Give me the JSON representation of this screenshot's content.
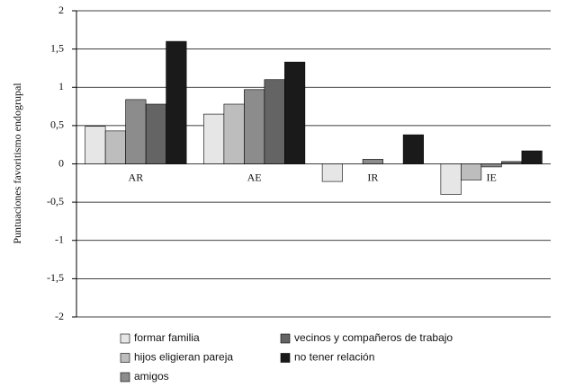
{
  "chart_data": {
    "type": "bar",
    "y_label": "Puntuaciones favoritismo endogrupal",
    "categories": [
      "AR",
      "AE",
      "IR",
      "IE"
    ],
    "series": [
      {
        "name": "formar familia",
        "color": "#e6e6e6",
        "values": [
          0.49,
          0.65,
          -0.23,
          -0.4
        ]
      },
      {
        "name": "hijos eligieran pareja",
        "color": "#bdbdbd",
        "values": [
          0.43,
          0.78,
          0,
          -0.21
        ]
      },
      {
        "name": "amigos",
        "color": "#8c8c8c",
        "values": [
          0.84,
          0.97,
          0.06,
          -0.04
        ]
      },
      {
        "name": "vecinos y compañeros de trabajo",
        "color": "#646464",
        "values": [
          0.78,
          1.1,
          0,
          0.03
        ]
      },
      {
        "name": "no tener relación",
        "color": "#1a1a1a",
        "values": [
          1.6,
          1.33,
          0.38,
          0.17
        ]
      }
    ],
    "ylim": [
      -2,
      2
    ],
    "yticks": [
      -2,
      {
        "value": -1.5,
        "label": "-1,5"
      },
      -1,
      {
        "value": -0.5,
        "label": "-0,5"
      },
      0,
      {
        "value": 0.5,
        "label": "0,5"
      },
      1,
      {
        "value": 1.5,
        "label": "1,5"
      },
      2
    ],
    "grid": true
  }
}
